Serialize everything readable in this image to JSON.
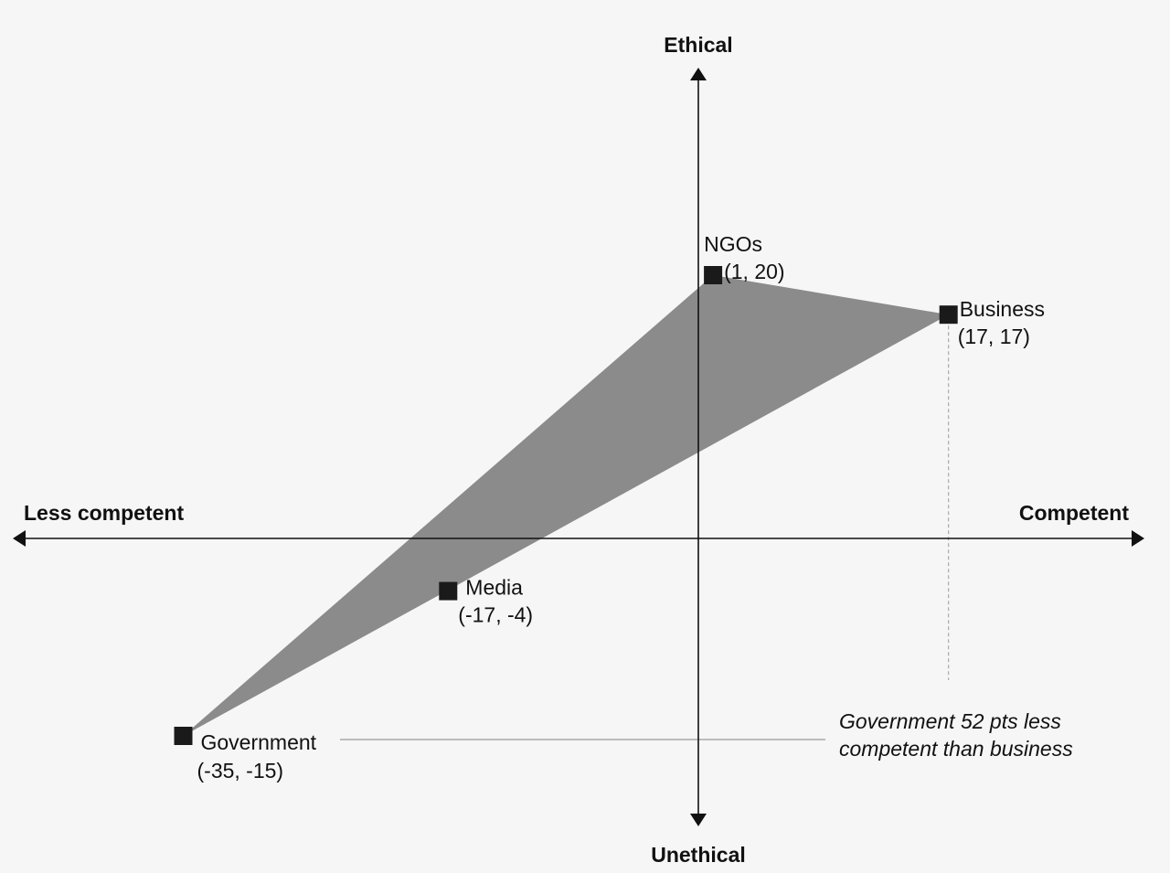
{
  "chart_data": {
    "type": "scatter",
    "title": "",
    "xlabel_positive": "Competent",
    "xlabel_negative": "Less competent",
    "ylabel_positive": "Ethical",
    "ylabel_negative": "Unethical",
    "xlim": [
      -50,
      40
    ],
    "ylim": [
      -25,
      40
    ],
    "grid": false,
    "fill_color": "#8b8b8b",
    "marker_color": "#1a1a1a",
    "points": [
      {
        "name": "NGOs",
        "x": 1,
        "y": 20,
        "value_label": "(1, 20)"
      },
      {
        "name": "Business",
        "x": 17,
        "y": 17,
        "value_label": "(17, 17)"
      },
      {
        "name": "Media",
        "x": -17,
        "y": -4,
        "value_label": "(-17, -4)"
      },
      {
        "name": "Government",
        "x": -35,
        "y": -15,
        "value_label": "(-35, -15)"
      }
    ],
    "polygon_order": [
      "NGOs",
      "Business",
      "Government"
    ],
    "annotation": {
      "lines": [
        "Government 52 pts less",
        "competent than business"
      ]
    }
  }
}
